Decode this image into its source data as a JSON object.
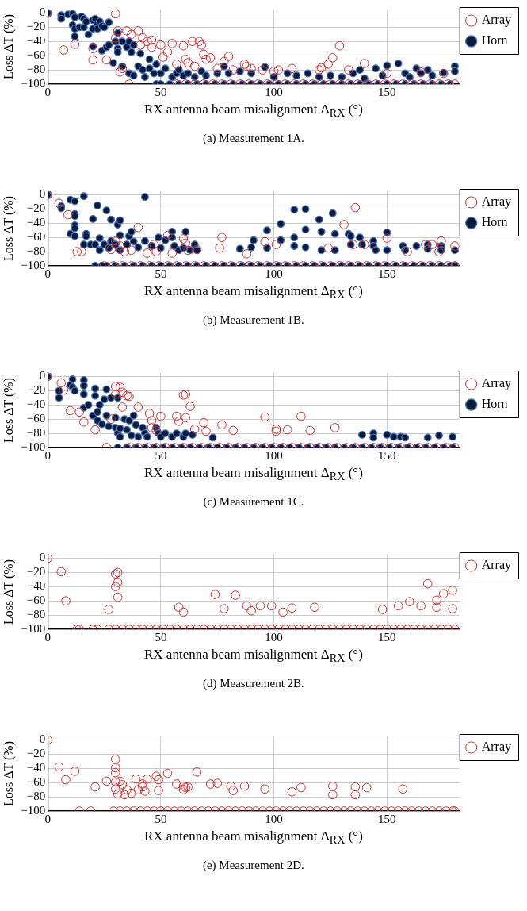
{
  "chart_data": [
    {
      "type": "scatter",
      "xlabel": "RX antenna beam misalignment Δ$_{RX}$ (°)",
      "ylabel": "Loss ΔT (%)",
      "annotations": [
        "(a) Measurement 1A."
      ],
      "xlim": [
        0,
        182
      ],
      "ylim": [
        -100,
        5
      ],
      "xticks": [
        0,
        50,
        100,
        150
      ],
      "yticks": [
        {
          "value": 0,
          "label": "0"
        },
        {
          "value": -20,
          "label": "−20"
        },
        {
          "value": -40,
          "label": "−40"
        },
        {
          "value": -60,
          "label": "−60"
        },
        {
          "value": -80,
          "label": "−80"
        },
        {
          "value": -100,
          "label": "−100"
        }
      ],
      "grid": true,
      "legend": "top right",
      "marker": "circle",
      "series": [
        {
          "name": "Array",
          "color": "#d62c2c",
          "x": [
            0,
            7,
            12,
            20,
            20,
            26,
            30,
            30,
            31,
            32,
            33,
            35,
            36,
            37,
            40,
            41,
            42,
            44,
            46,
            46,
            50,
            51,
            53,
            55,
            57,
            60,
            61,
            62,
            64,
            65,
            67,
            68,
            69,
            70,
            72,
            75,
            78,
            80,
            82,
            87,
            88,
            90,
            95,
            100,
            102,
            108,
            120,
            121,
            124,
            126,
            129,
            133,
            140,
            150,
            165,
            175,
            57,
            61,
            65,
            69,
            73,
            77,
            81,
            85,
            89,
            93,
            97,
            101,
            105,
            109,
            113,
            117,
            121,
            125,
            129,
            133,
            137,
            141,
            145,
            149,
            153,
            157,
            161,
            165,
            169,
            173,
            177,
            180
          ],
          "values": [
            0,
            -52,
            -44,
            -50,
            -66,
            -66,
            -1,
            -35,
            -25,
            -83,
            -78,
            -25,
            -100,
            -30,
            -25,
            -45,
            -35,
            -40,
            -38,
            -48,
            -45,
            -62,
            -55,
            -43,
            -72,
            -46,
            -65,
            -70,
            -40,
            -75,
            -40,
            -45,
            -58,
            -65,
            -63,
            -78,
            -68,
            -61,
            -80,
            -72,
            -75,
            -78,
            -80,
            -82,
            -80,
            -78,
            -80,
            -77,
            -72,
            -63,
            -46,
            -80,
            -71,
            -85,
            -83,
            -85,
            -100,
            -100,
            -100,
            -100,
            -100,
            -100,
            -100,
            -100,
            -100,
            -100,
            -100,
            -100,
            -100,
            -100,
            -100,
            -100,
            -100,
            -100,
            -100,
            -100,
            -100,
            -100,
            -100,
            -100,
            -100,
            -100,
            -100,
            -100,
            -100,
            -100,
            -100,
            -100
          ]
        },
        {
          "name": "Horn",
          "color": "#0d1b36",
          "x": [
            0,
            6,
            6,
            9,
            11,
            11,
            12,
            12,
            12,
            14,
            15,
            16,
            16,
            17,
            18,
            20,
            20,
            20,
            21,
            22,
            22,
            23,
            24,
            24,
            25,
            26,
            27,
            27,
            29,
            30,
            31,
            31,
            31,
            33,
            33,
            35,
            36,
            36,
            37,
            38,
            38,
            40,
            41,
            42,
            43,
            45,
            45,
            47,
            48,
            50,
            52,
            55,
            57,
            58,
            60,
            62,
            65,
            68,
            70,
            75,
            78,
            80,
            85,
            90,
            96,
            100,
            106,
            110,
            115,
            120,
            125,
            130,
            135,
            138,
            140,
            145,
            148,
            150,
            155,
            158,
            160,
            163,
            165,
            168,
            170,
            175,
            180,
            180,
            48,
            50,
            54,
            58,
            62,
            66,
            70,
            74,
            78,
            82,
            86,
            90,
            94,
            98,
            102,
            106,
            110,
            114,
            118,
            122,
            126,
            130,
            134,
            138,
            142,
            146,
            150,
            154,
            158,
            162,
            166,
            170,
            174,
            178
          ],
          "values": [
            0,
            -3,
            -8,
            -2,
            -1,
            -17,
            -6,
            -22,
            -33,
            -20,
            -5,
            -8,
            -20,
            -12,
            -30,
            -10,
            -22,
            -47,
            -8,
            -15,
            -22,
            -12,
            -18,
            -53,
            -20,
            -48,
            -13,
            -45,
            -70,
            -40,
            -28,
            -50,
            -55,
            -40,
            -75,
            -48,
            -40,
            -85,
            -55,
            -45,
            -88,
            -75,
            -57,
            -80,
            -90,
            -78,
            -65,
            -85,
            -72,
            -85,
            -78,
            -90,
            -85,
            -80,
            -88,
            -85,
            -90,
            -82,
            -88,
            -85,
            -75,
            -85,
            -82,
            -85,
            -76,
            -90,
            -85,
            -88,
            -85,
            -90,
            -88,
            -90,
            -85,
            -80,
            -92,
            -78,
            -88,
            -74,
            -71,
            -85,
            -90,
            -78,
            -85,
            -80,
            -88,
            -84,
            -75,
            -82,
            -100,
            -100,
            -100,
            -100,
            -100,
            -100,
            -100,
            -100,
            -100,
            -100,
            -100,
            -100,
            -100,
            -100,
            -100,
            -100,
            -100,
            -100,
            -100,
            -100,
            -100,
            -100,
            -100,
            -100,
            -100,
            -100,
            -100,
            -100,
            -100,
            -100,
            -100,
            -100,
            -100,
            -100
          ]
        }
      ]
    },
    {
      "type": "scatter",
      "xlabel": "RX antenna beam misalignment Δ$_{RX}$ (°)",
      "ylabel": "Loss ΔT (%)",
      "annotations": [
        "(b) Measurement 1B."
      ],
      "xlim": [
        0,
        182
      ],
      "ylim": [
        -100,
        5
      ],
      "xticks": [
        0,
        50,
        100,
        150
      ],
      "yticks": [
        {
          "value": 0,
          "label": "0"
        },
        {
          "value": -20,
          "label": "−20"
        },
        {
          "value": -40,
          "label": "−40"
        },
        {
          "value": -60,
          "label": "−60"
        },
        {
          "value": -80,
          "label": "−80"
        },
        {
          "value": -100,
          "label": "−100"
        }
      ],
      "grid": true,
      "legend": "top right",
      "marker": "circle",
      "series": [
        {
          "name": "Array",
          "color": "#d62c2c",
          "x": [
            0,
            5,
            9,
            13,
            15,
            28,
            30,
            32,
            34,
            37,
            40,
            44,
            47,
            48,
            53,
            55,
            60,
            61,
            62,
            66,
            76,
            77,
            88,
            96,
            101,
            124,
            131,
            135,
            136,
            140,
            150,
            159,
            167,
            170,
            173,
            174,
            180,
            25,
            29,
            33,
            37,
            41,
            45,
            49,
            53,
            57,
            61,
            65,
            69,
            73,
            77,
            81,
            85,
            89,
            93,
            97,
            101,
            105,
            109,
            113,
            117,
            121,
            125,
            129,
            133,
            137,
            141,
            145,
            149,
            153,
            157,
            161,
            165,
            169,
            173,
            177,
            180
          ],
          "values": [
            0,
            -12,
            -28,
            -80,
            -80,
            -77,
            -65,
            -72,
            -80,
            -78,
            -46,
            -82,
            -70,
            -80,
            -57,
            -82,
            -62,
            -68,
            -78,
            -77,
            -75,
            -60,
            -83,
            -66,
            -70,
            -75,
            -42,
            -70,
            -18,
            -70,
            -61,
            -80,
            -70,
            -70,
            -80,
            -65,
            -72,
            -100,
            -100,
            -100,
            -100,
            -100,
            -100,
            -100,
            -100,
            -100,
            -100,
            -100,
            -100,
            -100,
            -100,
            -100,
            -100,
            -100,
            -100,
            -100,
            -100,
            -100,
            -100,
            -100,
            -100,
            -100,
            -100,
            -100,
            -100,
            -100,
            -100,
            -100,
            -100,
            -100,
            -100,
            -100,
            -100,
            -100,
            -100,
            -100,
            -100
          ]
        },
        {
          "name": "Horn",
          "color": "#0d1b36",
          "x": [
            0,
            6,
            6,
            10,
            12,
            12,
            12,
            12,
            12,
            10,
            12,
            16,
            17,
            17,
            16,
            19,
            20,
            21,
            22,
            23,
            23,
            25,
            26,
            27,
            28,
            28,
            30,
            31,
            32,
            32,
            32,
            35,
            36,
            37,
            38,
            40,
            43,
            43,
            46,
            49,
            50,
            52,
            55,
            55,
            56,
            58,
            60,
            61,
            63,
            65,
            66,
            85,
            90,
            91,
            97,
            97,
            103,
            103,
            109,
            109,
            109,
            114,
            114,
            114,
            120,
            121,
            121,
            126,
            127,
            127,
            133,
            134,
            134,
            138,
            139,
            144,
            144,
            145,
            150,
            150,
            157,
            158,
            163,
            168,
            168,
            174,
            174,
            180,
            21,
            26,
            30,
            34,
            38,
            42,
            46,
            50,
            54,
            58,
            62,
            66,
            70,
            74,
            78,
            82,
            86,
            90,
            94,
            98,
            102,
            106,
            110,
            114,
            118,
            122,
            126,
            130,
            134,
            138,
            142,
            146,
            150,
            154,
            158,
            162,
            166,
            170,
            174,
            178,
            180,
            24
          ],
          "values": [
            0,
            -16,
            -19,
            -7,
            -9,
            -27,
            -30,
            -43,
            -47,
            -55,
            -58,
            -2,
            -55,
            -58,
            -70,
            -70,
            -34,
            -70,
            -15,
            -61,
            -78,
            -70,
            -22,
            -75,
            -35,
            -65,
            -70,
            -42,
            -36,
            -57,
            -78,
            -70,
            -58,
            -52,
            -66,
            -74,
            -3,
            -65,
            -72,
            -60,
            -75,
            -64,
            -52,
            -60,
            -72,
            -78,
            -75,
            -52,
            -78,
            -70,
            -78,
            -76,
            -74,
            -64,
            -50,
            -75,
            -41,
            -64,
            -21,
            -60,
            -72,
            -20,
            -49,
            -74,
            -35,
            -52,
            -78,
            -26,
            -55,
            -78,
            -55,
            -58,
            -70,
            -60,
            -70,
            -65,
            -72,
            -78,
            -53,
            -78,
            -72,
            -78,
            -72,
            -70,
            -76,
            -72,
            -78,
            -78,
            -100,
            -100,
            -100,
            -100,
            -100,
            -100,
            -100,
            -100,
            -100,
            -100,
            -100,
            -100,
            -100,
            -100,
            -100,
            -100,
            -100,
            -100,
            -100,
            -100,
            -100,
            -100,
            -100,
            -100,
            -100,
            -100,
            -100,
            -100,
            -100,
            -100,
            -100,
            -100,
            -100,
            -100,
            -100,
            -100,
            -100,
            -100,
            -100,
            -100,
            -100,
            -100
          ]
        }
      ]
    },
    {
      "type": "scatter",
      "xlabel": "RX antenna beam misalignment Δ$_{RX}$ (°)",
      "ylabel": "Loss ΔT (%)",
      "annotations": [
        "(c) Measurement 1C."
      ],
      "xlim": [
        0,
        182
      ],
      "ylim": [
        -100,
        5
      ],
      "xticks": [
        0,
        50,
        100,
        150
      ],
      "yticks": [
        {
          "value": 0,
          "label": "0"
        },
        {
          "value": -20,
          "label": "−20"
        },
        {
          "value": -40,
          "label": "−40"
        },
        {
          "value": -60,
          "label": "−60"
        },
        {
          "value": -80,
          "label": "−80"
        },
        {
          "value": -100,
          "label": "−100"
        }
      ],
      "grid": true,
      "legend": "top right",
      "marker": "circle",
      "series": [
        {
          "name": "Array",
          "color": "#d62c2c",
          "x": [
            0,
            6,
            7,
            10,
            14,
            16,
            21,
            26,
            28,
            30,
            30,
            32,
            33,
            33,
            35,
            36,
            40,
            45,
            46,
            46,
            48,
            50,
            57,
            58,
            60,
            61,
            61,
            63,
            65,
            69,
            70,
            77,
            82,
            96,
            101,
            101,
            106,
            112,
            116,
            127,
            36,
            40,
            44,
            48,
            52,
            56,
            60,
            64,
            68,
            72,
            76,
            80,
            84,
            88,
            92,
            96,
            100,
            104,
            108,
            112,
            116,
            120,
            124,
            128,
            132,
            136,
            140,
            144,
            148,
            152,
            156,
            160,
            164,
            168,
            172,
            176,
            180
          ],
          "values": [
            0,
            -9,
            -19,
            -48,
            -50,
            -64,
            -75,
            -100,
            -60,
            -14,
            -25,
            -15,
            -22,
            -43,
            -27,
            -28,
            -43,
            -52,
            -62,
            -72,
            -76,
            -56,
            -56,
            -63,
            -26,
            -25,
            -58,
            -42,
            -74,
            -65,
            -77,
            -68,
            -76,
            -57,
            -74,
            -77,
            -75,
            -56,
            -76,
            -72,
            -100,
            -100,
            -100,
            -100,
            -100,
            -100,
            -100,
            -100,
            -100,
            -100,
            -100,
            -100,
            -100,
            -100,
            -100,
            -100,
            -100,
            -100,
            -100,
            -100,
            -100,
            -100,
            -100,
            -100,
            -100,
            -100,
            -100,
            -100,
            -100,
            -100,
            -100,
            -100,
            -100,
            -100,
            -100,
            -100,
            -100
          ]
        },
        {
          "name": "Horn",
          "color": "#0d1b36",
          "x": [
            0,
            5,
            5,
            10,
            11,
            11,
            12,
            16,
            16,
            16,
            16,
            18,
            20,
            21,
            21,
            22,
            22,
            23,
            24,
            25,
            26,
            26,
            27,
            28,
            30,
            30,
            31,
            31,
            32,
            32,
            34,
            35,
            36,
            37,
            38,
            39,
            40,
            42,
            43,
            44,
            48,
            49,
            50,
            52,
            55,
            57,
            60,
            61,
            64,
            73,
            139,
            144,
            144,
            150,
            153,
            156,
            158,
            168,
            173,
            179,
            31,
            35,
            39,
            43,
            47,
            51,
            55,
            59,
            63,
            67,
            71,
            75,
            79,
            83,
            87,
            91,
            95,
            99,
            103,
            107,
            111,
            115,
            119,
            123,
            127,
            131,
            135,
            139,
            143,
            147,
            151,
            155,
            159,
            163,
            167,
            171,
            175,
            179
          ],
          "values": [
            0,
            -20,
            -30,
            -12,
            -4,
            -15,
            -20,
            -5,
            -13,
            -25,
            -44,
            -40,
            -55,
            -17,
            -27,
            -50,
            -62,
            -40,
            -67,
            -32,
            -18,
            -55,
            -70,
            -30,
            -58,
            -72,
            -80,
            -30,
            -73,
            -85,
            -60,
            -75,
            -62,
            -83,
            -55,
            -68,
            -85,
            -72,
            -80,
            -85,
            -72,
            -80,
            -85,
            -80,
            -85,
            -80,
            -85,
            -80,
            -82,
            -86,
            -82,
            -80,
            -86,
            -82,
            -85,
            -85,
            -86,
            -86,
            -83,
            -85,
            -100,
            -100,
            -100,
            -100,
            -100,
            -100,
            -100,
            -100,
            -100,
            -100,
            -100,
            -100,
            -100,
            -100,
            -100,
            -100,
            -100,
            -100,
            -100,
            -100,
            -100,
            -100,
            -100,
            -100,
            -100,
            -100,
            -100,
            -100,
            -100,
            -100,
            -100,
            -100,
            -100,
            -100,
            -100,
            -100,
            -100,
            -100
          ]
        }
      ]
    },
    {
      "type": "scatter",
      "xlabel": "RX antenna beam misalignment Δ$_{RX}$ (°)",
      "ylabel": "Loss ΔT (%)",
      "annotations": [
        "(d) Measurement 2B."
      ],
      "xlim": [
        0,
        182
      ],
      "ylim": [
        -100,
        5
      ],
      "xticks": [
        0,
        50,
        100,
        150
      ],
      "yticks": [
        {
          "value": 0,
          "label": "0"
        },
        {
          "value": -20,
          "label": "−20"
        },
        {
          "value": -40,
          "label": "−40"
        },
        {
          "value": -60,
          "label": "−60"
        },
        {
          "value": -80,
          "label": "−80"
        },
        {
          "value": -100,
          "label": "−100"
        }
      ],
      "grid": true,
      "legend": "top right",
      "marker": "circle",
      "series": [
        {
          "name": "Array",
          "color": "#d62c2c",
          "x": [
            0,
            6,
            8,
            27,
            30,
            30,
            31,
            31,
            31,
            58,
            60,
            74,
            78,
            83,
            88,
            90,
            94,
            99,
            104,
            108,
            118,
            148,
            155,
            160,
            165,
            168,
            172,
            172,
            175,
            179,
            179,
            13,
            14,
            20,
            22,
            27,
            30,
            33,
            36,
            39,
            42,
            45,
            48,
            51,
            54,
            57,
            60,
            63,
            66,
            69,
            72,
            75,
            78,
            81,
            84,
            87,
            90,
            93,
            96,
            99,
            102,
            105,
            108,
            111,
            114,
            117,
            120,
            123,
            126,
            129,
            132,
            135,
            138,
            141,
            144,
            147,
            150,
            153,
            156,
            159,
            162,
            165,
            168,
            171,
            174,
            177,
            180
          ],
          "values": [
            0,
            -19,
            -60,
            -72,
            -40,
            -22,
            -20,
            -34,
            -55,
            -69,
            -76,
            -51,
            -71,
            -52,
            -67,
            -74,
            -67,
            -67,
            -76,
            -70,
            -69,
            -72,
            -67,
            -61,
            -67,
            -36,
            -59,
            -69,
            -50,
            -45,
            -71,
            -100,
            -100,
            -100,
            -100,
            -100,
            -100,
            -100,
            -100,
            -100,
            -100,
            -100,
            -100,
            -100,
            -100,
            -100,
            -100,
            -100,
            -100,
            -100,
            -100,
            -100,
            -100,
            -100,
            -100,
            -100,
            -100,
            -100,
            -100,
            -100,
            -100,
            -100,
            -100,
            -100,
            -100,
            -100,
            -100,
            -100,
            -100,
            -100,
            -100,
            -100,
            -100,
            -100,
            -100,
            -100,
            -100,
            -100,
            -100,
            -100,
            -100,
            -100,
            -100,
            -100,
            -100,
            -100,
            -100
          ]
        }
      ]
    },
    {
      "type": "scatter",
      "xlabel": "RX antenna beam misalignment Δ$_{RX}$ (°)",
      "ylabel": "Loss ΔT (%)",
      "annotations": [
        "(e) Measurement 2D."
      ],
      "xlim": [
        0,
        182
      ],
      "ylim": [
        -100,
        5
      ],
      "xticks": [
        0,
        50,
        100,
        150
      ],
      "yticks": [
        {
          "value": 0,
          "label": "0"
        },
        {
          "value": -20,
          "label": "−20"
        },
        {
          "value": -40,
          "label": "−40"
        },
        {
          "value": -60,
          "label": "−60"
        },
        {
          "value": -80,
          "label": "−80"
        },
        {
          "value": -100,
          "label": "−100"
        }
      ],
      "grid": true,
      "legend": "top right",
      "marker": "circle",
      "series": [
        {
          "name": "Array",
          "color": "#d62c2c",
          "x": [
            0,
            5,
            8,
            12,
            21,
            26,
            30,
            30,
            30,
            30,
            30,
            31,
            32,
            33,
            34,
            35,
            37,
            39,
            40,
            42,
            42,
            43,
            44,
            48,
            49,
            49,
            53,
            57,
            60,
            60,
            61,
            62,
            66,
            72,
            75,
            81,
            82,
            87,
            96,
            108,
            112,
            126,
            126,
            136,
            136,
            141,
            157,
            14,
            19,
            29,
            32,
            35,
            38,
            41,
            44,
            47,
            50,
            53,
            56,
            59,
            62,
            65,
            68,
            71,
            74,
            77,
            80,
            83,
            86,
            89,
            92,
            95,
            98,
            101,
            104,
            107,
            110,
            113,
            116,
            119,
            122,
            125,
            128,
            131,
            134,
            137,
            140,
            143,
            146,
            149,
            152,
            155,
            158,
            161,
            164,
            167,
            170,
            173,
            176,
            179,
            180
          ],
          "values": [
            0,
            -38,
            -56,
            -44,
            -66,
            -58,
            -27,
            -39,
            -46,
            -59,
            -69,
            -76,
            -58,
            -63,
            -77,
            -70,
            -75,
            -55,
            -70,
            -62,
            -66,
            -72,
            -55,
            -51,
            -56,
            -71,
            -47,
            -62,
            -65,
            -70,
            -67,
            -66,
            -45,
            -62,
            -61,
            -65,
            -71,
            -65,
            -69,
            -73,
            -67,
            -65,
            -77,
            -66,
            -77,
            -67,
            -69,
            -100,
            -100,
            -100,
            -100,
            -100,
            -100,
            -100,
            -100,
            -100,
            -100,
            -100,
            -100,
            -100,
            -100,
            -100,
            -100,
            -100,
            -100,
            -100,
            -100,
            -100,
            -100,
            -100,
            -100,
            -100,
            -100,
            -100,
            -100,
            -100,
            -100,
            -100,
            -100,
            -100,
            -100,
            -100,
            -100,
            -100,
            -100,
            -100,
            -100,
            -100,
            -100,
            -100,
            -100,
            -100,
            -100,
            -100,
            -100,
            -100,
            -100,
            -100,
            -100,
            -100,
            -100
          ]
        }
      ]
    }
  ]
}
